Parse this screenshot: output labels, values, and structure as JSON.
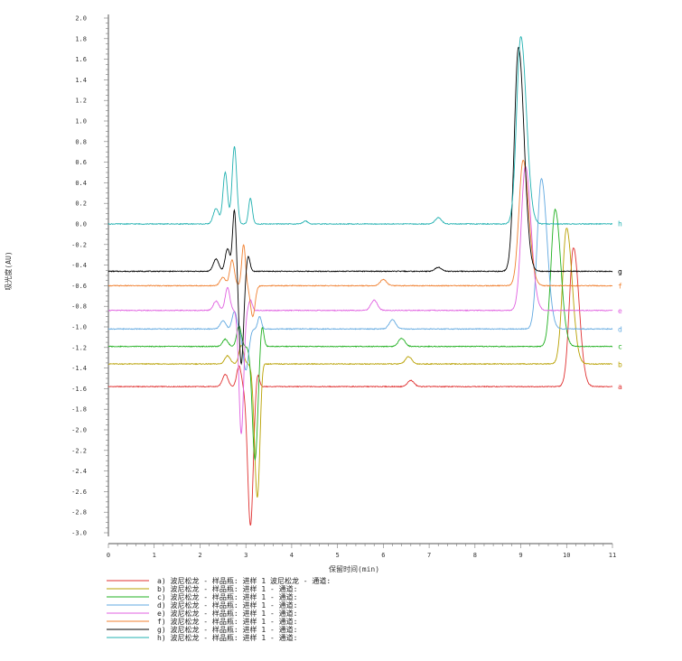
{
  "chart_data": {
    "type": "line",
    "title": "",
    "xlabel": "保留时间(min)",
    "ylabel": "吸光度(AU)",
    "xlim": [
      0,
      11
    ],
    "ylim": [
      -3.0,
      2.0
    ],
    "x_ticks": [
      "0",
      "1",
      "2",
      "3",
      "4",
      "5",
      "6",
      "7",
      "8",
      "9",
      "10",
      "11"
    ],
    "y_ticks": [
      "2.0",
      "1.8",
      "1.6",
      "1.4",
      "1.2",
      "1.0",
      "0.8",
      "0.6",
      "0.4",
      "0.2",
      "0.0",
      "-0.2",
      "-0.4",
      "-0.6",
      "-0.8",
      "-1.0",
      "-1.2",
      "-1.4",
      "-1.6",
      "-1.8",
      "-2.0",
      "-2.2",
      "-2.4",
      "-2.6",
      "-2.8",
      "-3.0"
    ],
    "grid": false,
    "legend_position": "bottom-left",
    "series": [
      {
        "tag": "a",
        "name": "a) 波尼松龙 - 样品瓶: 进样 1 波尼松龙 - 通道:",
        "color": "#e03030",
        "baseline": -1.58,
        "peaks": [
          [
            2.55,
            0.12,
            0.06
          ],
          [
            2.85,
            0.2,
            0.05
          ],
          [
            3.1,
            -1.35,
            0.06
          ],
          [
            3.25,
            0.15,
            0.04
          ],
          [
            6.6,
            0.06,
            0.07
          ],
          [
            10.15,
            1.35,
            0.09
          ]
        ]
      },
      {
        "tag": "b",
        "name": "b) 波尼松龙 - 样品瓶: 进样 1 - 通道:",
        "color": "#b8a000",
        "baseline": -1.36,
        "peaks": [
          [
            2.6,
            0.08,
            0.06
          ],
          [
            2.9,
            0.18,
            0.05
          ],
          [
            3.25,
            -1.3,
            0.06
          ],
          [
            3.35,
            0.1,
            0.04
          ],
          [
            6.55,
            0.07,
            0.07
          ],
          [
            10.0,
            1.32,
            0.09
          ]
        ]
      },
      {
        "tag": "c",
        "name": "c) 波尼松龙 - 样品瓶: 进样 1 - 通道:",
        "color": "#20b020",
        "baseline": -1.19,
        "peaks": [
          [
            2.55,
            0.07,
            0.06
          ],
          [
            2.85,
            0.2,
            0.05
          ],
          [
            3.2,
            -1.1,
            0.06
          ],
          [
            3.35,
            0.22,
            0.04
          ],
          [
            6.4,
            0.08,
            0.07
          ],
          [
            9.75,
            1.33,
            0.09
          ]
        ]
      },
      {
        "tag": "d",
        "name": "d) 波尼松龙 - 样品瓶: 进样 1 - 通道:",
        "color": "#60a8e0",
        "baseline": -1.02,
        "peaks": [
          [
            2.5,
            0.08,
            0.06
          ],
          [
            2.75,
            0.17,
            0.05
          ],
          [
            3.0,
            -0.4,
            0.06
          ],
          [
            3.3,
            0.12,
            0.04
          ],
          [
            6.2,
            0.09,
            0.07
          ],
          [
            9.45,
            1.46,
            0.09
          ]
        ]
      },
      {
        "tag": "e",
        "name": "e) 波尼松龙 - 样品瓶: 进样 1 - 通道:",
        "color": "#e060e0",
        "baseline": -0.84,
        "peaks": [
          [
            2.35,
            0.09,
            0.06
          ],
          [
            2.6,
            0.22,
            0.05
          ],
          [
            2.9,
            -1.2,
            0.05
          ],
          [
            3.1,
            0.1,
            0.04
          ],
          [
            5.8,
            0.1,
            0.07
          ],
          [
            9.1,
            1.4,
            0.09
          ]
        ]
      },
      {
        "tag": "f",
        "name": "f) 波尼松龙 - 样品瓶: 进样 1 - 通道:",
        "color": "#f08030",
        "baseline": -0.6,
        "peaks": [
          [
            2.5,
            0.08,
            0.06
          ],
          [
            2.7,
            0.25,
            0.05
          ],
          [
            2.95,
            0.4,
            0.04
          ],
          [
            3.15,
            -0.3,
            0.05
          ],
          [
            6.0,
            0.06,
            0.07
          ],
          [
            9.05,
            1.22,
            0.09
          ]
        ]
      },
      {
        "tag": "g",
        "name": "g) 波尼松龙 - 样品瓶: 进样 1 - 通道:",
        "color": "#000000",
        "baseline": -0.46,
        "peaks": [
          [
            2.35,
            0.12,
            0.06
          ],
          [
            2.6,
            0.22,
            0.05
          ],
          [
            2.75,
            0.6,
            0.04
          ],
          [
            2.9,
            -0.9,
            0.05
          ],
          [
            3.05,
            0.15,
            0.04
          ],
          [
            7.2,
            0.04,
            0.07
          ],
          [
            8.95,
            2.18,
            0.09
          ]
        ]
      },
      {
        "tag": "h",
        "name": "h) 波尼松龙 - 样品瓶: 进样 1 - 通道:",
        "color": "#20b0b0",
        "baseline": 0.0,
        "peaks": [
          [
            2.35,
            0.15,
            0.06
          ],
          [
            2.55,
            0.5,
            0.05
          ],
          [
            2.75,
            0.75,
            0.05
          ],
          [
            3.1,
            0.25,
            0.04
          ],
          [
            4.3,
            0.03,
            0.05
          ],
          [
            7.2,
            0.06,
            0.07
          ],
          [
            9.0,
            1.82,
            0.09
          ]
        ]
      }
    ]
  }
}
